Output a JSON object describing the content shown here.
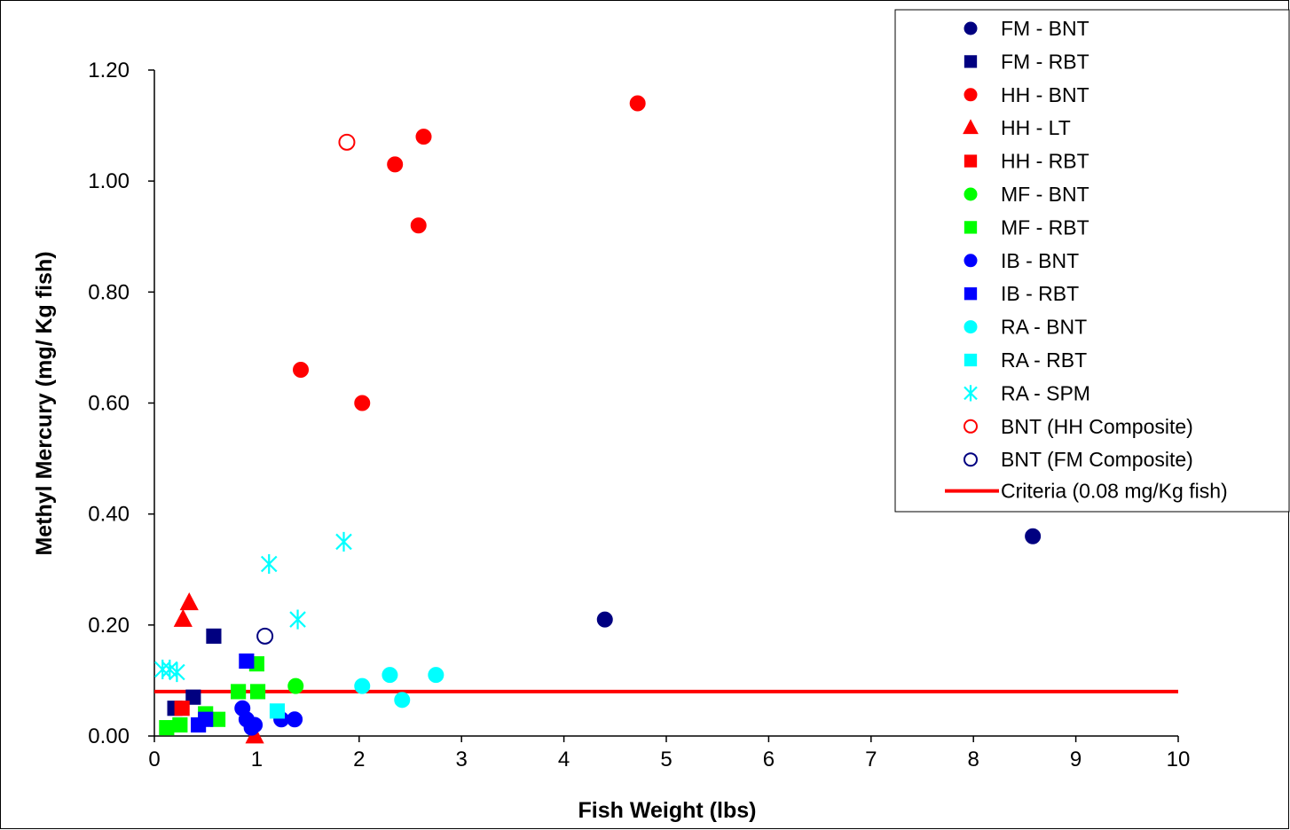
{
  "chart_data": {
    "type": "scatter",
    "title": "",
    "xlabel": "Fish Weight (lbs)",
    "ylabel": "Methyl Mercury (mg/ Kg fish)",
    "xlim": [
      0,
      10
    ],
    "ylim": [
      0,
      1.2
    ],
    "x_ticks": [
      "0",
      "1",
      "2",
      "3",
      "4",
      "5",
      "6",
      "7",
      "8",
      "9",
      "10"
    ],
    "y_ticks": [
      "0.00",
      "0.20",
      "0.40",
      "0.60",
      "0.80",
      "1.00",
      "1.20"
    ],
    "grid": false,
    "legend_position": "top-right",
    "series": [
      {
        "name": "FM - BNT",
        "marker": "circle",
        "fill": true,
        "color": "#000080",
        "points": [
          [
            4.4,
            0.21
          ],
          [
            8.58,
            0.36
          ]
        ]
      },
      {
        "name": "FM - RBT",
        "marker": "square",
        "fill": true,
        "color": "#000080",
        "points": [
          [
            0.2,
            0.05
          ],
          [
            0.38,
            0.07
          ],
          [
            0.58,
            0.18
          ]
        ]
      },
      {
        "name": "HH - BNT",
        "marker": "circle",
        "fill": true,
        "color": "#ff0000",
        "points": [
          [
            1.43,
            0.66
          ],
          [
            2.03,
            0.6
          ],
          [
            2.35,
            1.03
          ],
          [
            2.58,
            0.92
          ],
          [
            2.63,
            1.08
          ],
          [
            4.72,
            1.14
          ]
        ]
      },
      {
        "name": "HH - LT",
        "marker": "triangle",
        "fill": true,
        "color": "#ff0000",
        "points": [
          [
            0.28,
            0.21
          ],
          [
            0.34,
            0.24
          ],
          [
            0.98,
            0.0
          ]
        ]
      },
      {
        "name": "HH - RBT",
        "marker": "square",
        "fill": true,
        "color": "#ff0000",
        "points": [
          [
            0.27,
            0.05
          ]
        ]
      },
      {
        "name": "MF - BNT",
        "marker": "circle",
        "fill": true,
        "color": "#00ff00",
        "points": [
          [
            1.38,
            0.09
          ]
        ]
      },
      {
        "name": "MF - RBT",
        "marker": "square",
        "fill": true,
        "color": "#00ff00",
        "points": [
          [
            0.12,
            0.015
          ],
          [
            0.25,
            0.02
          ],
          [
            0.5,
            0.04
          ],
          [
            0.62,
            0.03
          ],
          [
            0.82,
            0.08
          ],
          [
            1.0,
            0.13
          ],
          [
            1.01,
            0.08
          ]
        ]
      },
      {
        "name": "IB - BNT",
        "marker": "circle",
        "fill": true,
        "color": "#0000ff",
        "points": [
          [
            0.86,
            0.05
          ],
          [
            0.9,
            0.03
          ],
          [
            0.95,
            0.015
          ],
          [
            0.98,
            0.02
          ],
          [
            1.24,
            0.03
          ],
          [
            1.37,
            0.03
          ]
        ]
      },
      {
        "name": "IB - RBT",
        "marker": "square",
        "fill": true,
        "color": "#0000ff",
        "points": [
          [
            0.43,
            0.02
          ],
          [
            0.5,
            0.03
          ],
          [
            0.9,
            0.135
          ]
        ]
      },
      {
        "name": "RA - BNT",
        "marker": "circle",
        "fill": true,
        "color": "#00ffff",
        "points": [
          [
            2.03,
            0.09
          ],
          [
            2.3,
            0.11
          ],
          [
            2.42,
            0.065
          ],
          [
            2.75,
            0.11
          ]
        ]
      },
      {
        "name": "RA - RBT",
        "marker": "square",
        "fill": true,
        "color": "#00ffff",
        "points": [
          [
            1.2,
            0.045
          ]
        ]
      },
      {
        "name": "RA - SPM",
        "marker": "asterisk",
        "fill": false,
        "color": "#00ffff",
        "points": [
          [
            0.08,
            0.12
          ],
          [
            0.15,
            0.12
          ],
          [
            0.22,
            0.115
          ],
          [
            1.12,
            0.31
          ],
          [
            1.4,
            0.21
          ],
          [
            1.85,
            0.35
          ]
        ]
      },
      {
        "name": "BNT (HH Composite)",
        "marker": "circle",
        "fill": false,
        "color": "#ff0000",
        "points": [
          [
            1.88,
            1.07
          ]
        ]
      },
      {
        "name": "BNT (FM Composite)",
        "marker": "circle",
        "fill": false,
        "color": "#000080",
        "points": [
          [
            1.08,
            0.18
          ]
        ]
      }
    ],
    "reference_line": {
      "name": "Criteria (0.08 mg/Kg fish)",
      "y": 0.08,
      "color": "#ff0000"
    }
  }
}
